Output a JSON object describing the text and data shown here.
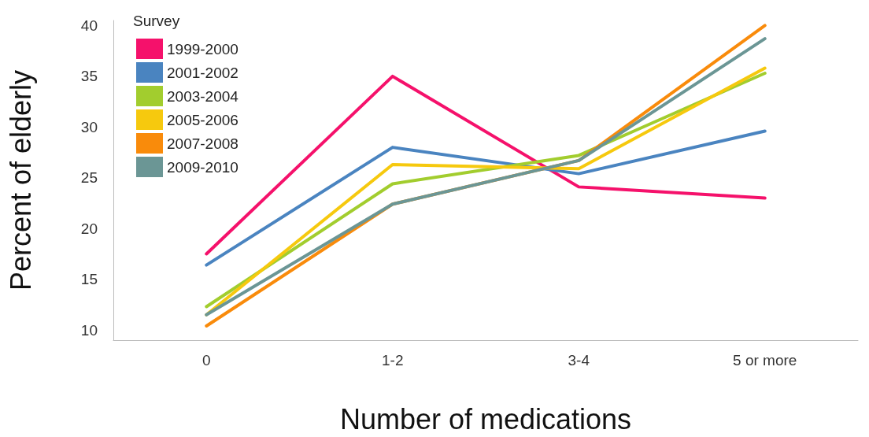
{
  "chart_data": {
    "type": "line",
    "xlabel": "Number of medications",
    "ylabel": "Percent of elderly",
    "legend_title": "Survey",
    "categories": [
      "0",
      "1-2",
      "3-4",
      "5 or more"
    ],
    "series": [
      {
        "name": "1999-2000",
        "color": "#f5116b",
        "values": [
          17.5,
          35,
          24.1,
          23
        ]
      },
      {
        "name": "2001-2002",
        "color": "#4a84c0",
        "values": [
          16.4,
          28,
          25.4,
          29.6
        ]
      },
      {
        "name": "2003-2004",
        "color": "#a2cd2e",
        "values": [
          12.3,
          24.4,
          27.2,
          35.3
        ]
      },
      {
        "name": "2005-2006",
        "color": "#f6c90e",
        "values": [
          11.5,
          26.3,
          25.9,
          35.8
        ]
      },
      {
        "name": "2007-2008",
        "color": "#f98b0b",
        "values": [
          10.4,
          22.4,
          26.7,
          40
        ]
      },
      {
        "name": "2009-2010",
        "color": "#6b9695",
        "values": [
          11.5,
          22.4,
          26.7,
          38.7
        ]
      }
    ],
    "ylim": [
      9,
      40.5
    ],
    "yticks": [
      10,
      15,
      20,
      25,
      30,
      35,
      40
    ],
    "grid": false,
    "legend": "top left",
    "marker": "none",
    "line_style": "solid"
  }
}
